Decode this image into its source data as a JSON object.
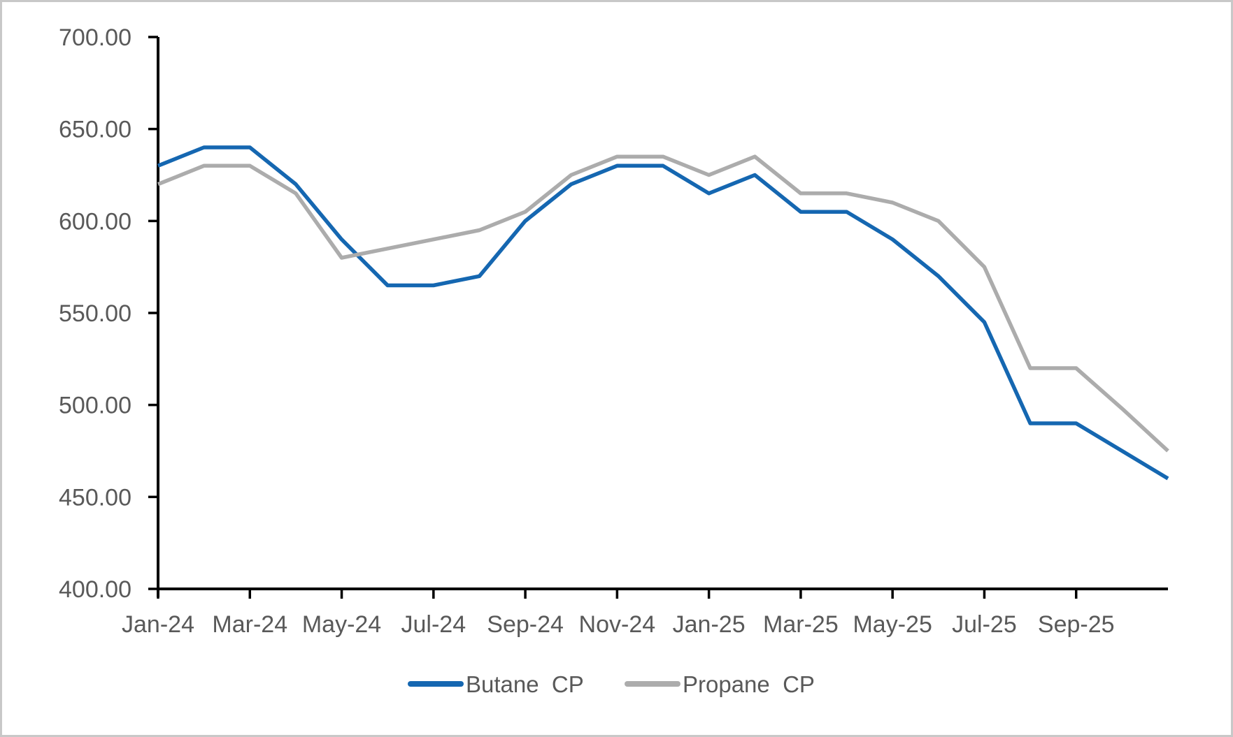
{
  "chart_data": {
    "type": "line",
    "title": "",
    "categories": [
      "Jan-24",
      "Feb-24",
      "Mar-24",
      "Apr-24",
      "May-24",
      "Jun-24",
      "Jul-24",
      "Aug-24",
      "Sep-24",
      "Oct-24",
      "Nov-24",
      "Dec-24",
      "Jan-25",
      "Feb-25",
      "Mar-25",
      "Apr-25",
      "May-25",
      "Jun-25",
      "Jul-25",
      "Aug-25",
      "Sep-25",
      "Oct-25",
      "Nov-25"
    ],
    "x_tick_labels": [
      "Jan-24",
      "Mar-24",
      "May-24",
      "Jul-24",
      "Sep-24",
      "Nov-24",
      "Jan-25",
      "Mar-25",
      "May-25",
      "Jul-25",
      "Sep-25"
    ],
    "x_label_interval": 2,
    "series": [
      {
        "name": "Butane  CP",
        "color": "#1567B1",
        "values": [
          630,
          640,
          640,
          620,
          590,
          565,
          565,
          570,
          600,
          620,
          630,
          630,
          615,
          625,
          605,
          605,
          590,
          570,
          545,
          490,
          490,
          475,
          460
        ]
      },
      {
        "name": "Propane  CP",
        "color": "#ACACAC",
        "values": [
          620,
          630,
          630,
          615,
          580,
          585,
          590,
          595,
          605,
          625,
          635,
          635,
          625,
          635,
          615,
          615,
          610,
          600,
          575,
          520,
          520,
          498,
          475
        ]
      }
    ],
    "ylim": [
      400,
      700
    ],
    "ytick_step": 50,
    "ytick_labels": [
      "400.00",
      "450.00",
      "500.00",
      "550.00",
      "600.00",
      "650.00",
      "700.00"
    ],
    "grid": false,
    "legend_position": "bottom"
  },
  "style": {
    "axis_color": "#000000",
    "label_color": "#595959",
    "background": "#FFFFFF",
    "frame_border": "#C8C8C8"
  }
}
